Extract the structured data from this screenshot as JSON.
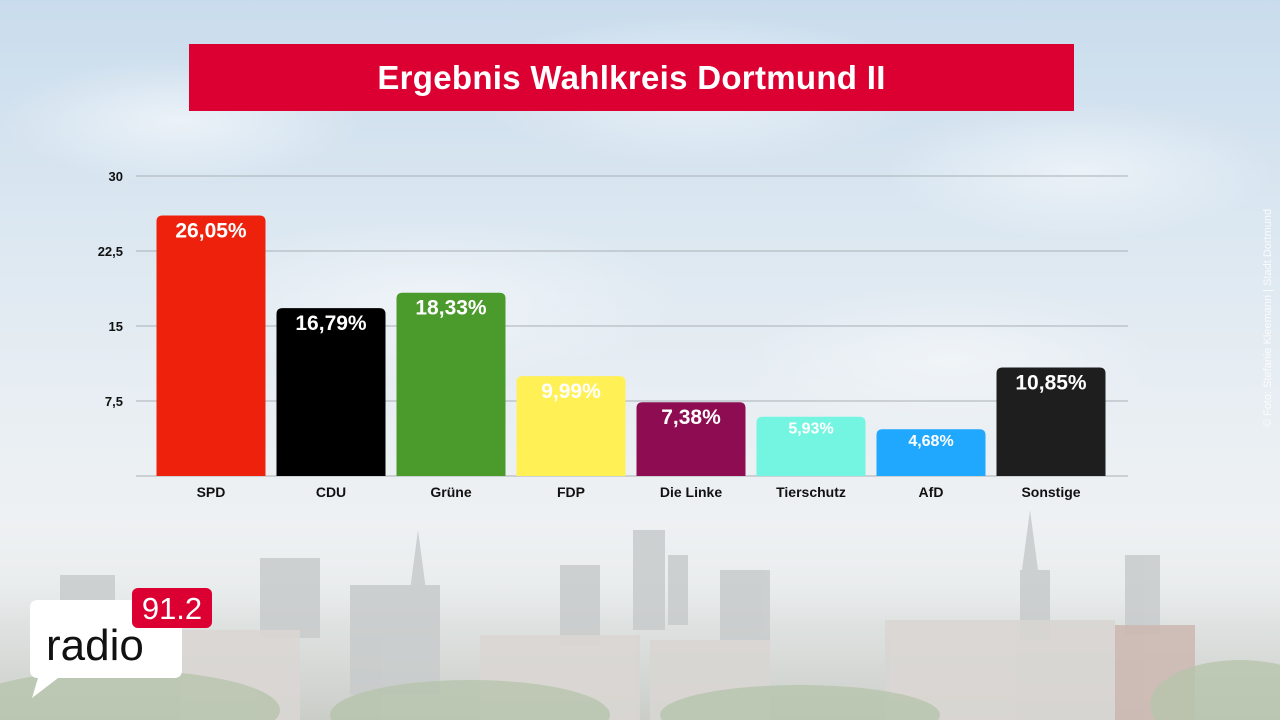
{
  "title": "Ergebnis Wahlkreis Dortmund II",
  "credit": "© Foto: Stefanie Kleemann | Stadt Dortmund",
  "logo": {
    "word": "radio",
    "frequency": "91.2"
  },
  "chart_data": {
    "type": "bar",
    "title": "Ergebnis Wahlkreis Dortmund II",
    "xlabel": "",
    "ylabel": "",
    "ylim": [
      0,
      30
    ],
    "yticks": [
      7.5,
      15,
      22.5,
      30
    ],
    "ytick_labels": [
      "7,5",
      "15",
      "22,5",
      "30"
    ],
    "grid": true,
    "categories": [
      "SPD",
      "CDU",
      "Grüne",
      "FDP",
      "Die Linke",
      "Tierschutz",
      "AfD",
      "Sonstige"
    ],
    "values": [
      26.05,
      16.79,
      18.33,
      9.99,
      7.38,
      5.93,
      4.68,
      10.85
    ],
    "value_labels": [
      "26,05%",
      "16,79%",
      "18,33%",
      "9,99%",
      "7,38%",
      "5,93%",
      "4,68%",
      "10,85%"
    ],
    "colors": [
      "#ee220c",
      "#000000",
      "#4a9a2c",
      "#fff155",
      "#8e0d52",
      "#74f5e2",
      "#20a8fe",
      "#1e1e1e"
    ]
  }
}
